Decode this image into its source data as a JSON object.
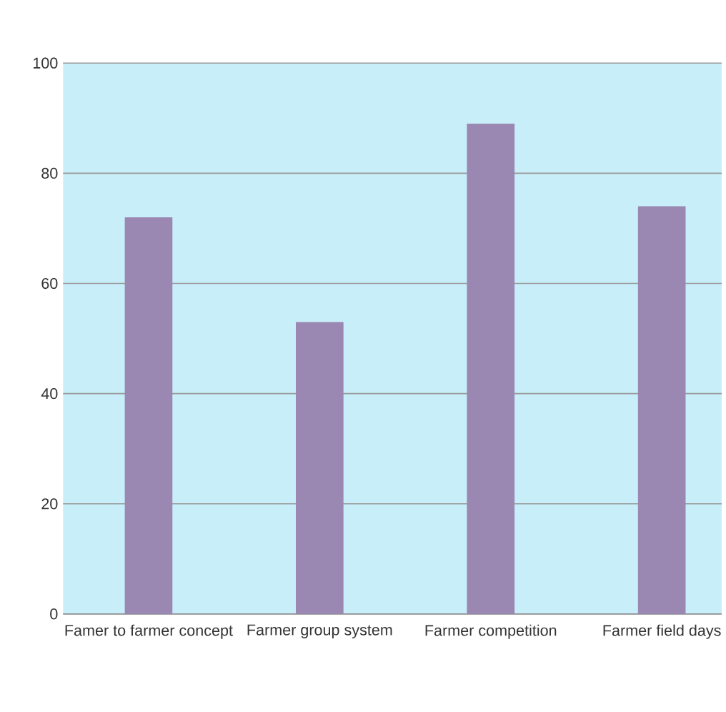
{
  "chart_data": {
    "type": "bar",
    "categories": [
      "Famer to farmer concept",
      "Farmer group system",
      "Farmer competition",
      "Farmer field days"
    ],
    "values": [
      72,
      53,
      89,
      74
    ],
    "color": "#9a87b2",
    "ylim": [
      0,
      100
    ],
    "yticks": [
      0,
      20,
      40,
      60,
      80,
      100
    ],
    "grid": "y"
  }
}
